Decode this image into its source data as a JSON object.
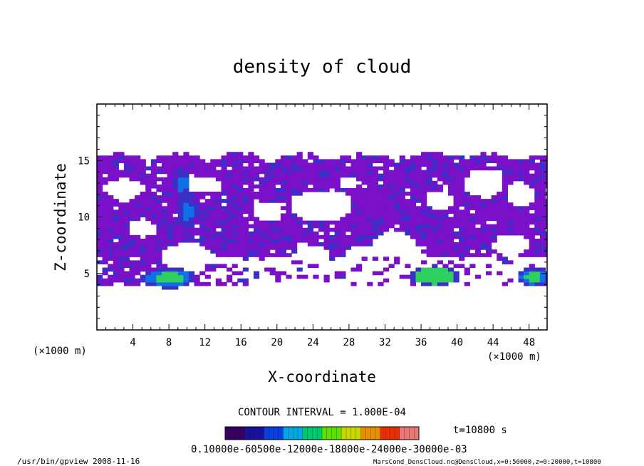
{
  "chart_data": {
    "type": "heatmap",
    "title": "density of cloud",
    "xlabel": "X-coordinate",
    "ylabel": "Z-coordinate",
    "x_unit": "(×1000 m)",
    "y_unit": "(×1000 m)",
    "xlim": [
      0,
      50
    ],
    "ylim": [
      0,
      20
    ],
    "x_ticks": [
      4,
      8,
      12,
      16,
      20,
      24,
      28,
      32,
      36,
      40,
      44,
      48
    ],
    "y_ticks": [
      5,
      10,
      15
    ],
    "contour_interval_label": "CONTOUR INTERVAL = 1.000E-04",
    "time_label": "t=10800 s",
    "colorbar_labels_text": "0.10000e-60500e-12000e-18000e-24000e-30000e-03",
    "colorbar_range": [
      0.0001,
      0.0003
    ],
    "colormap": [
      "#3a0060",
      "#1a10a0",
      "#0a40e0",
      "#00a8e8",
      "#00c870",
      "#60e000",
      "#c8d800",
      "#e89000",
      "#e83000",
      "#e87878"
    ],
    "fill_color": "#7a10c8",
    "mid_color": "#3a30c8",
    "high_color": "#1070e8",
    "peak_color": "#30d060",
    "regions": [
      {
        "level": 1,
        "label": "main cloud layer",
        "x_range": [
          0,
          50
        ],
        "z_range": [
          6,
          15.7
        ]
      },
      {
        "level": 1,
        "label": "lower band",
        "x_range": [
          0,
          12
        ],
        "z_range": [
          4,
          8
        ]
      },
      {
        "level": 3,
        "label": "base blob near x=8",
        "x_range": [
          5,
          11
        ],
        "z_range": [
          4,
          5.5
        ]
      },
      {
        "level": 4,
        "label": "base blob near x=37",
        "x_range": [
          35,
          40
        ],
        "z_range": [
          4,
          5.6
        ]
      },
      {
        "level": 3,
        "label": "base blob near x=48",
        "x_range": [
          46,
          50
        ],
        "z_range": [
          4,
          5.5
        ]
      },
      {
        "level": 2,
        "label": "column near x=10",
        "x_range": [
          9,
          11
        ],
        "z_range": [
          9,
          14
        ]
      }
    ]
  },
  "footer": {
    "left": "/usr/bin/gpview   2008-11-16",
    "right": "MarsCond_DensCloud.nc@DensCloud,x=0:50000,z=0:20000,t=10800"
  }
}
